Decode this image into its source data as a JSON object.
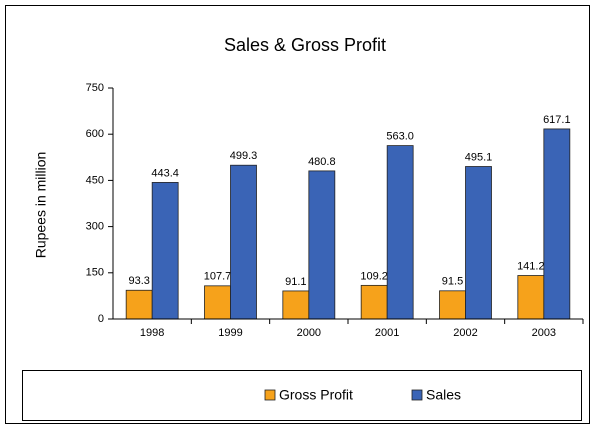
{
  "chart_data": {
    "type": "bar",
    "title": "Sales & Gross Profit",
    "ylabel": "Rupees in million",
    "categories": [
      "1998",
      "1999",
      "2000",
      "2001",
      "2002",
      "2003"
    ],
    "series": [
      {
        "name": "Gross Profit",
        "color": "#f6a21b",
        "values": [
          93.3,
          107.7,
          91.1,
          109.2,
          91.5,
          141.2
        ],
        "value_labels": [
          "93.3",
          "107.7",
          "91.1",
          "109.2",
          "91.5",
          "141.2"
        ]
      },
      {
        "name": "Sales",
        "color": "#3a64b6",
        "values": [
          443.4,
          499.3,
          480.8,
          563.0,
          495.1,
          617.1
        ],
        "value_labels": [
          "443.4",
          "499.3",
          "480.8",
          "563.0",
          "495.1",
          "617.1"
        ]
      }
    ],
    "ylim": [
      0,
      750
    ],
    "yticks": [
      0,
      150,
      300,
      450,
      600,
      750
    ],
    "grid": false,
    "legend": "bottom"
  }
}
